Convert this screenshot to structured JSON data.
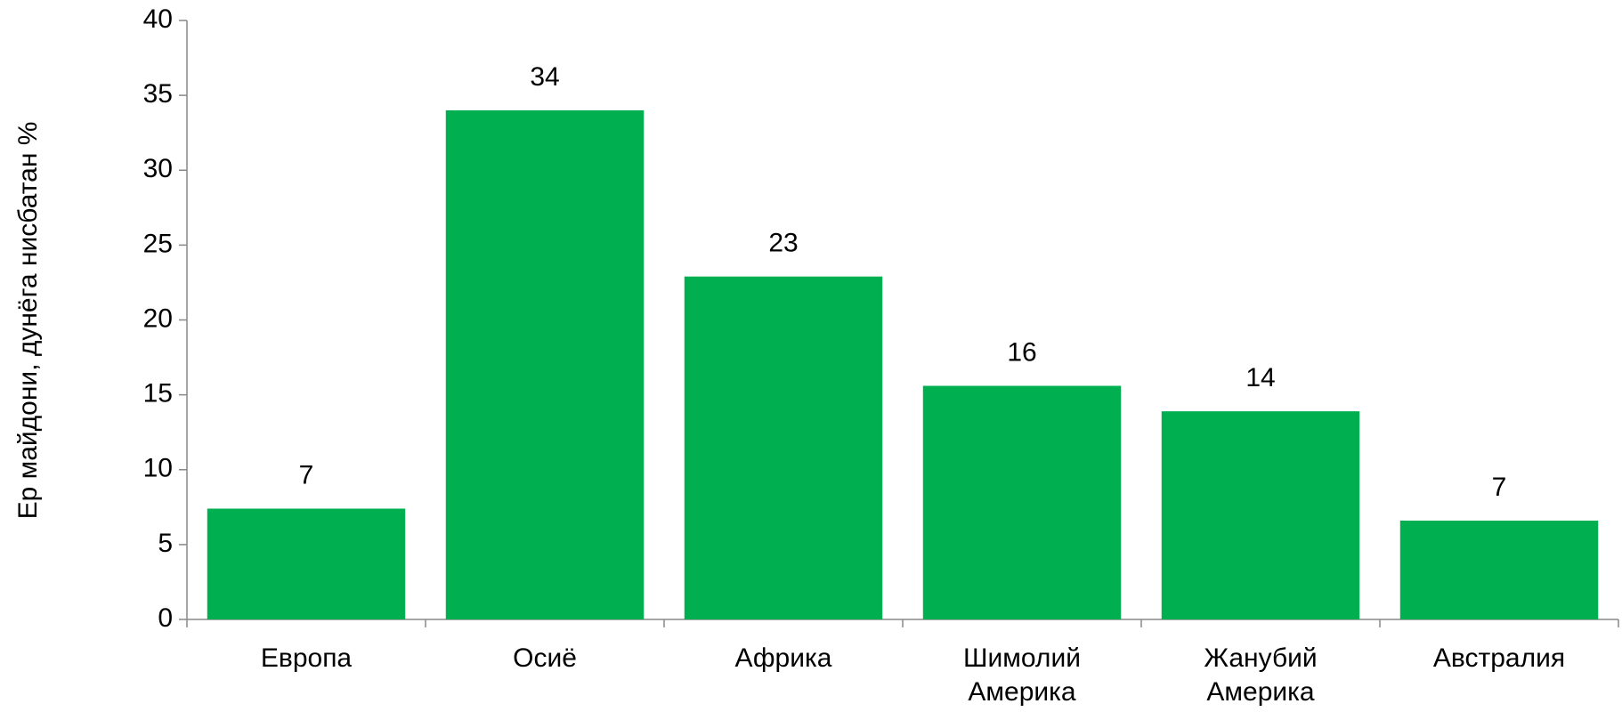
{
  "chart_data": {
    "type": "bar",
    "y_axis_label": "Ер майдони, дунёга нисбатан %",
    "categories": [
      "Европа",
      "Осиё",
      "Африка",
      "Шимолий Америка",
      "Жанубий Америка",
      "Австралия"
    ],
    "values": [
      7.4,
      34,
      22.9,
      15.6,
      13.9,
      6.6
    ],
    "value_labels": [
      "7",
      "34",
      "23",
      "16",
      "14",
      "7"
    ],
    "color": "#00b050",
    "ylim": [
      0,
      40
    ],
    "yticks": [
      0,
      5,
      10,
      15,
      20,
      25,
      30,
      35,
      40
    ],
    "grid": false
  }
}
